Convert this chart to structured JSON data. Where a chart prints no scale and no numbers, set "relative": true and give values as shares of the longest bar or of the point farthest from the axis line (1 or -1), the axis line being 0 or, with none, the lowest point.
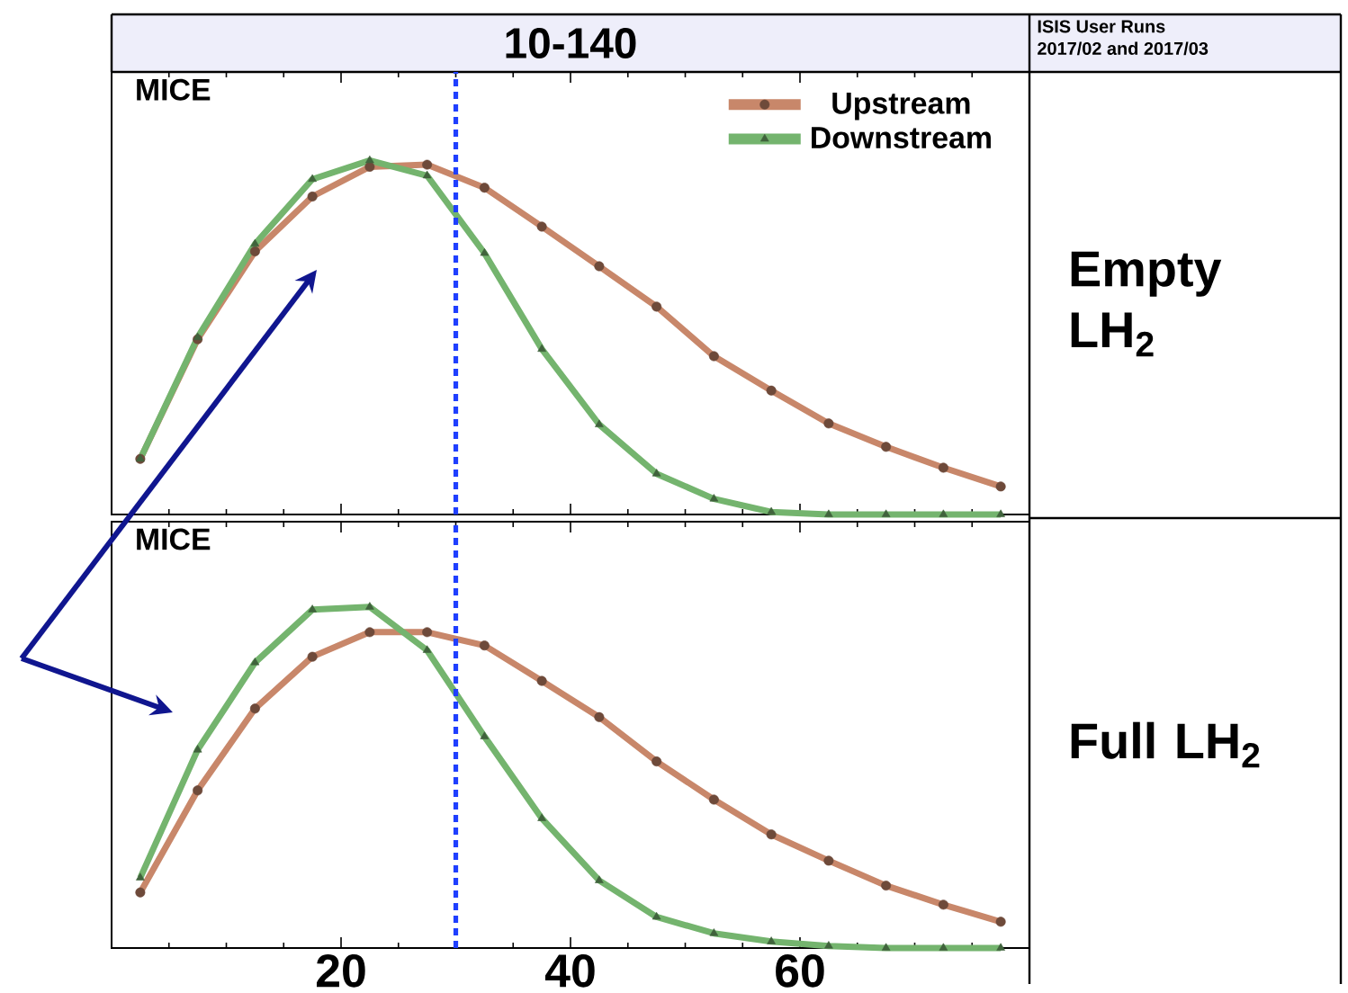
{
  "chart_data": [
    {
      "type": "line",
      "title": "10-140",
      "relative": true,
      "legend": "top right",
      "tick_labels": false,
      "x": [
        2.5,
        7.5,
        12.5,
        17.5,
        22.5,
        27.5,
        32.5,
        37.5,
        42.5,
        47.5,
        52.5,
        57.5,
        62.5,
        67.5,
        72.5,
        77.5
      ],
      "xlim": [
        0,
        80
      ],
      "xticks": [
        {
          "value": 0,
          "label": null
        },
        {
          "value": 20,
          "label": null
        },
        {
          "value": 40,
          "label": null
        },
        {
          "value": 60,
          "label": null
        },
        {
          "value": 80,
          "label": null
        }
      ],
      "series": [
        {
          "name": "Upstream",
          "color": "#c8876a",
          "marker": "circle",
          "values": [
            0.157,
            0.495,
            0.743,
            0.898,
            0.982,
            0.988,
            0.923,
            0.813,
            0.701,
            0.587,
            0.447,
            0.35,
            0.257,
            0.191,
            0.132,
            0.079
          ]
        },
        {
          "name": "Downstream",
          "color": "#74b46e",
          "marker": "triangle",
          "values": [
            0.157,
            0.5,
            0.764,
            0.947,
            1,
            0.957,
            0.738,
            0.467,
            0.254,
            0.115,
            0.044,
            0.007,
            0,
            0,
            0,
            0
          ]
        }
      ],
      "ref_lines": [
        {
          "axis": "x",
          "value": 30,
          "color": "#1f3fff",
          "line_style": "dotted"
        }
      ],
      "annotations": [
        "MICE",
        "Empty LH$_{2}$",
        "ISIS User Runs",
        "2017/02 and 2017/03"
      ]
    },
    {
      "type": "line",
      "relative": true,
      "tick_labels": "x",
      "x": [
        2.5,
        7.5,
        12.5,
        17.5,
        22.5,
        27.5,
        32.5,
        37.5,
        42.5,
        47.5,
        52.5,
        57.5,
        62.5,
        67.5,
        72.5,
        77.5
      ],
      "xlim": [
        0,
        80
      ],
      "xticks": [
        {
          "value": 0,
          "label": null
        },
        20,
        40,
        60,
        {
          "value": 80,
          "label": null
        }
      ],
      "series": [
        {
          "color": "#c8876a",
          "marker": "circle",
          "values": [
            0.163,
            0.462,
            0.702,
            0.854,
            0.926,
            0.926,
            0.887,
            0.783,
            0.677,
            0.547,
            0.435,
            0.333,
            0.256,
            0.183,
            0.127,
            0.077
          ]
        },
        {
          "color": "#74b46e",
          "marker": "triangle",
          "values": [
            0.206,
            0.581,
            0.837,
            0.992,
            1,
            0.873,
            0.62,
            0.38,
            0.198,
            0.091,
            0.043,
            0.019,
            0.006,
            0,
            0,
            0
          ]
        }
      ],
      "ref_lines": [
        {
          "axis": "x",
          "value": 30,
          "color": "#1f3fff",
          "line_style": "dotted"
        }
      ],
      "annotations": [
        "MICE",
        "Full LH$_{2}$"
      ]
    }
  ]
}
